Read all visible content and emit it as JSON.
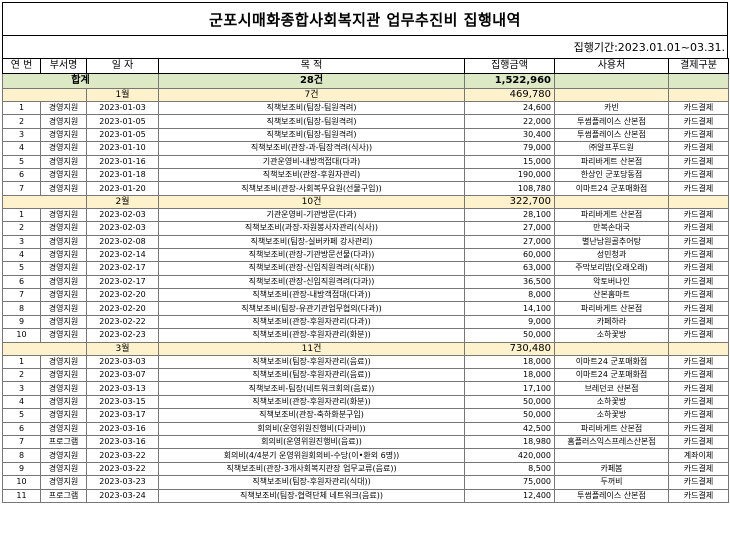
{
  "title": "군포시매화종합사회복지관 업무추진비 집행내역",
  "period": "집행기간:2023.01.01~03.31.",
  "headers": [
    "연 번",
    "부서명",
    "일 자",
    "목 적",
    "집행금액",
    "사용처",
    "결제구분"
  ],
  "total": {
    "label": "합계",
    "count": "28건",
    "amount": "1,522,960"
  },
  "months": [
    {
      "label": "1월",
      "count": "7건",
      "amount": "469,780",
      "rows": [
        [
          "1",
          "경영지원",
          "2023-01-03",
          "직책보조비(팀장-팀원격려)",
          "24,600",
          "카빈",
          "카드결제"
        ],
        [
          "2",
          "경영지원",
          "2023-01-05",
          "직책보조비(팀장-팀원격려)",
          "22,000",
          "투썸플레이스 산본점",
          "카드결제"
        ],
        [
          "3",
          "경영지원",
          "2023-01-05",
          "직책보조비(팀장-팀원격려)",
          "30,400",
          "투썸플레이스 산본점",
          "카드결제"
        ],
        [
          "4",
          "경영지원",
          "2023-01-10",
          "직책보조비(관장-과-팀장격려(식사))",
          "79,000",
          "㈜알프푸드원",
          "카드결제"
        ],
        [
          "5",
          "경영지원",
          "2023-01-16",
          "기관운영비-내방객접대(다과)",
          "15,000",
          "파리바게트 산본점",
          "카드결제"
        ],
        [
          "6",
          "경영지원",
          "2023-01-18",
          "직책보조비(관장-후원자관리)",
          "190,000",
          "한상인 군포당동점",
          "카드결제"
        ],
        [
          "7",
          "경영지원",
          "2023-01-20",
          "직책보조비(관장-사회복무요원(선물구입))",
          "108,780",
          "이마트24 군포매화점",
          "카드결제"
        ]
      ]
    },
    {
      "label": "2월",
      "count": "10건",
      "amount": "322,700",
      "rows": [
        [
          "1",
          "경영지원",
          "2023-02-03",
          "기관운영비-기관방문(다과)",
          "28,100",
          "파리바게트 산본점",
          "카드결제"
        ],
        [
          "2",
          "경영지원",
          "2023-02-03",
          "직책보조비(과장-자원봉사자관리(식사))",
          "27,000",
          "만복손대국",
          "카드결제"
        ],
        [
          "3",
          "경영지원",
          "2023-02-08",
          "직책보조비(팀장-실버카페 강사관리)",
          "27,000",
          "별난남원골추어탕",
          "카드결제"
        ],
        [
          "4",
          "경영지원",
          "2023-02-14",
          "직책보조비(관장-기관방문선물(다과))",
          "60,000",
          "성민청과",
          "카드결제"
        ],
        [
          "5",
          "경영지원",
          "2023-02-17",
          "직책보조비(관장-신입직원격려(식대))",
          "63,000",
          "주막보리밥(오래오래)",
          "카드결제"
        ],
        [
          "6",
          "경영지원",
          "2023-02-17",
          "직책보조비(관장-신입직원격려(다과))",
          "36,500",
          "악토버나인",
          "카드결제"
        ],
        [
          "7",
          "경영지원",
          "2023-02-20",
          "직책보조비(관장-내방객접대(다과))",
          "8,000",
          "산본홈마트",
          "카드결제"
        ],
        [
          "8",
          "경영지원",
          "2023-02-20",
          "직책보조비(팀장-유관기관업무협의(다과))",
          "14,100",
          "파리바게트 산본점",
          "카드결제"
        ],
        [
          "9",
          "경영지원",
          "2023-02-22",
          "직책보조비(관장-후원자관리(다과))",
          "9,000",
          "카페하라",
          "카드결제"
        ],
        [
          "10",
          "경영지원",
          "2023-02-23",
          "직책보조비(관장-후원자관리(화분))",
          "50,000",
          "소하꽃방",
          "카드결제"
        ]
      ]
    },
    {
      "label": "3월",
      "count": "11건",
      "amount": "730,480",
      "rows": [
        [
          "1",
          "경영지원",
          "2023-03-03",
          "직책보조비(팀장-후원자관리(음료))",
          "18,000",
          "이마트24 군포매화점",
          "카드결제"
        ],
        [
          "2",
          "경영지원",
          "2023-03-07",
          "직책보조비(팀장-후원자관리(음료))",
          "18,000",
          "이마트24 군포매화점",
          "카드결제"
        ],
        [
          "3",
          "경영지원",
          "2023-03-13",
          "직책보조비-팀장(네트워크회의(음료))",
          "17,100",
          "브레던코 산본점",
          "카드결제"
        ],
        [
          "4",
          "경영지원",
          "2023-03-15",
          "직책보조비(관장-후원자관리(화분))",
          "50,000",
          "소하꽃방",
          "카드결제"
        ],
        [
          "5",
          "경영지원",
          "2023-03-17",
          "직책보조비(관장-축하화분구입)",
          "50,000",
          "소하꽃방",
          "카드결제"
        ],
        [
          "6",
          "경영지원",
          "2023-03-16",
          "회의비(운영위원진행비(다과비))",
          "42,500",
          "파리바게트 산본점",
          "카드결제"
        ],
        [
          "7",
          "프로그램",
          "2023-03-16",
          "회의비(운영위원진행비(음료))",
          "18,980",
          "홈플러스익스프레스산본점",
          "카드결제"
        ],
        [
          "8",
          "경영지원",
          "2023-03-22",
          "회의비(4/4분기 운영위원회의비-수당(이•환외 6명))",
          "420,000",
          "",
          "계좌이체"
        ],
        [
          "9",
          "경영지원",
          "2023-03-22",
          "직책보조비(관장-3개사회복지관장 업무교류(음료))",
          "8,500",
          "카페봄",
          "카드결제"
        ],
        [
          "10",
          "경영지원",
          "2023-03-23",
          "직책보조비(팀장-후원자관리(식대))",
          "75,000",
          "두꺼비",
          "카드결제"
        ],
        [
          "11",
          "프로그램",
          "2023-03-24",
          "직책보조비(팀장-협력단체 네트워크(음료))",
          "12,400",
          "투썸플레이스 산본점",
          "카드결제"
        ]
      ]
    }
  ]
}
